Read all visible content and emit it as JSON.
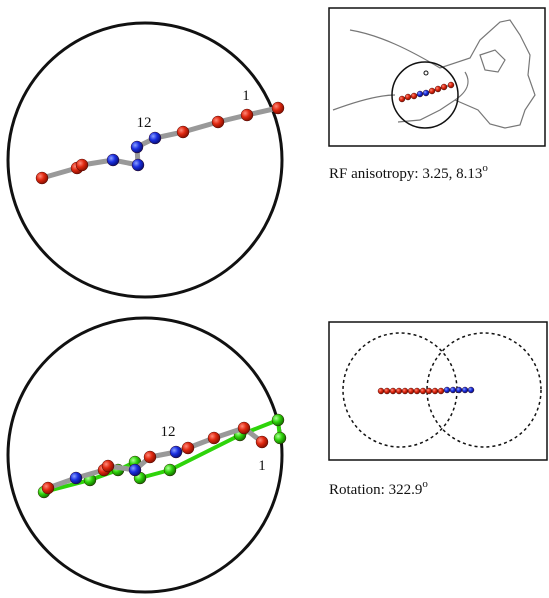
{
  "panels": [
    {
      "labels": [
        "12",
        "1"
      ],
      "caption": {
        "text": "RF anisotropy: 3.25, 8.13",
        "superscript": "o"
      }
    },
    {
      "labels": [
        "12",
        "1"
      ],
      "caption": {
        "text": "Rotation: 322.9",
        "superscript": "o"
      }
    }
  ]
}
